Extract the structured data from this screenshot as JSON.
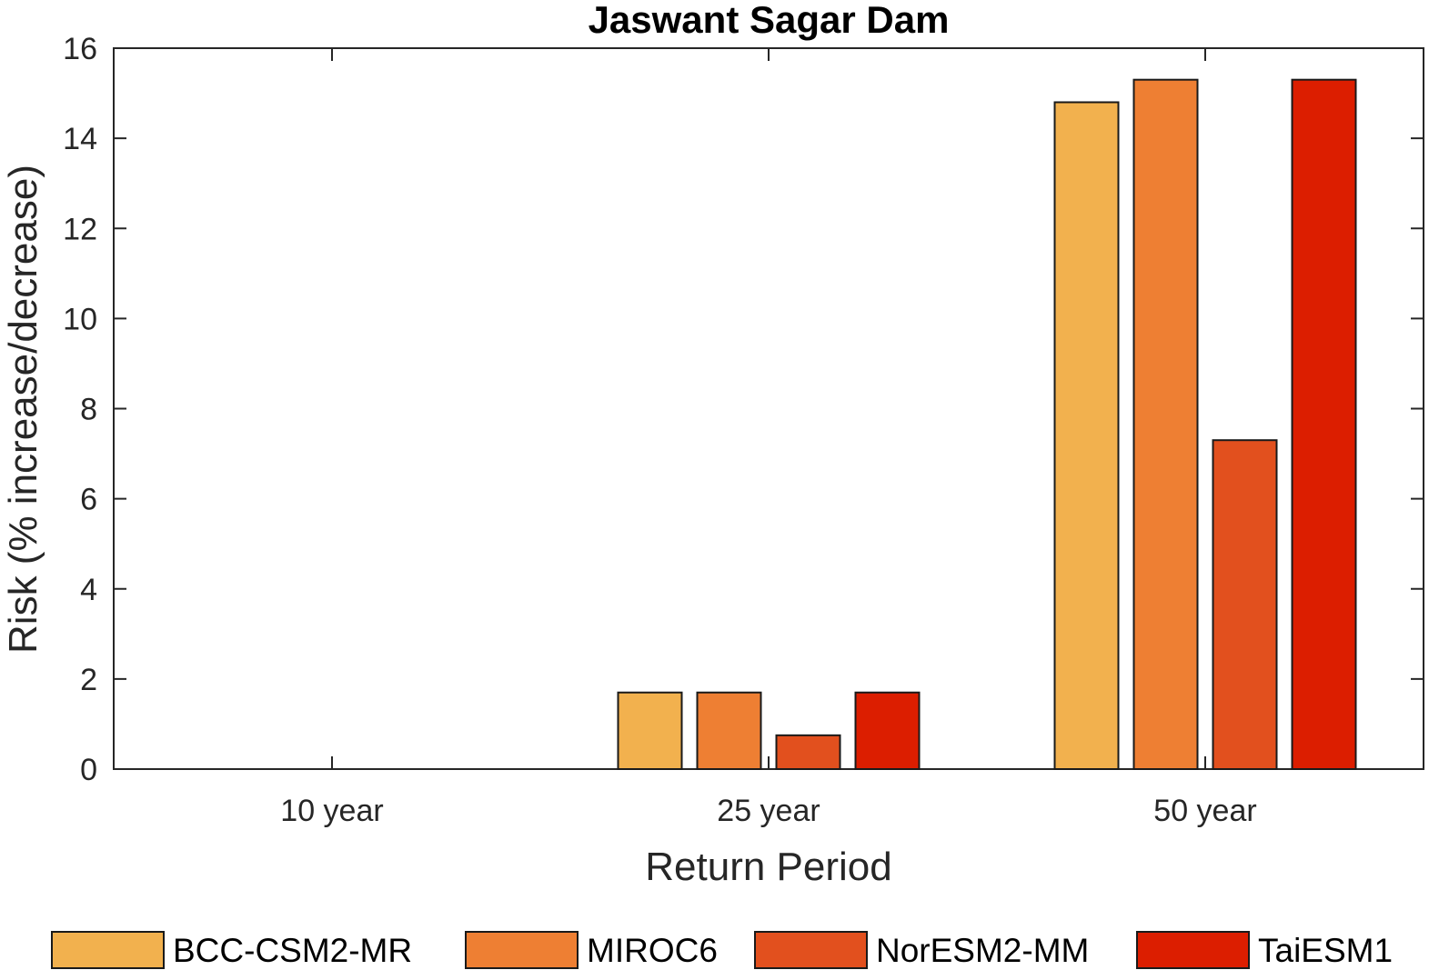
{
  "chart_data": {
    "type": "bar",
    "title": "Jaswant Sagar Dam",
    "xlabel": "Return Period",
    "ylabel": "Risk (% increase/decrease)",
    "categories": [
      "10 year",
      "25 year",
      "50 year"
    ],
    "ylim": [
      0,
      16
    ],
    "yticks": [
      0,
      2,
      4,
      6,
      8,
      10,
      12,
      14,
      16
    ],
    "grid": false,
    "legend_position": "bottom",
    "series": [
      {
        "name": "BCC-CSM2-MR",
        "color": "#F2B14E",
        "values": [
          0,
          1.7,
          14.8
        ]
      },
      {
        "name": "MIROC6",
        "color": "#EE7F33",
        "values": [
          0,
          1.7,
          15.3
        ]
      },
      {
        "name": "NorESM2-MM",
        "color": "#E2501E",
        "values": [
          0,
          0.75,
          7.3
        ]
      },
      {
        "name": "TaiESM1",
        "color": "#DC1E00",
        "values": [
          0,
          1.7,
          15.3
        ]
      }
    ]
  }
}
